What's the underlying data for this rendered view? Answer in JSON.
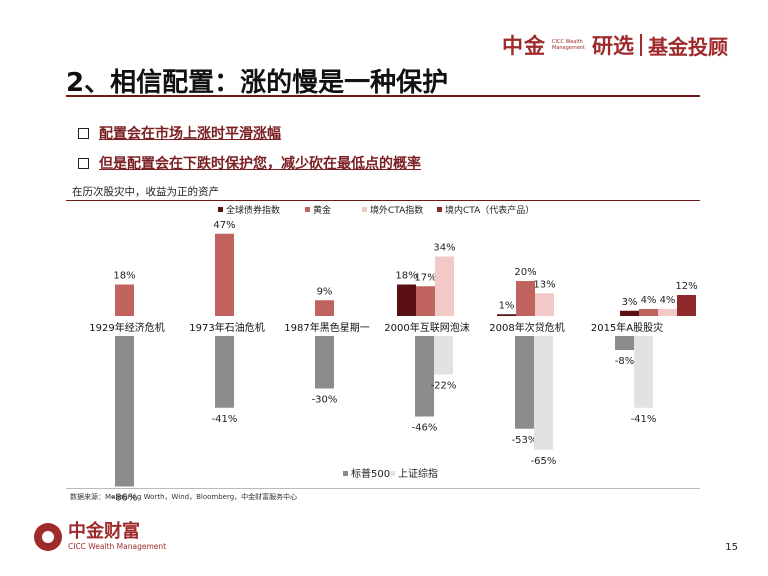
{
  "header": {
    "brand_main": "中金",
    "brand_small": "CICC Wealth Management",
    "brand_mid": "研选",
    "brand_right": "基金投顾"
  },
  "title": "2、相信配置：涨的慢是一种保护",
  "bullets": [
    "配置会在市场上涨时平滑涨幅",
    "但是配置会在下跌时保护您，减少砍在最低点的概率"
  ],
  "subheading": "在历次股灾中，收益为正的资产",
  "source": "数据来源：Measuring Worth，Wind，Bloomberg，中金财富服务中心",
  "footer": {
    "logo_cn": "中金财富",
    "logo_en": "CICC Wealth Management",
    "page": "15"
  },
  "colors": {
    "global_bond": "#5a0f12",
    "gold": "#c0625e",
    "overseas_cta": "#f2c9c7",
    "domestic_cta": "#8e2a2c",
    "sp500": "#8c8c8c",
    "shanghai": "#e2e2e2"
  },
  "chart_data": {
    "type": "bar",
    "categories": [
      "1929年经济危机",
      "1973年石油危机",
      "1987年黑色星期一",
      "2000年互联网泡沫",
      "2008年次贷危机",
      "2015年A股股灾"
    ],
    "top_legend": [
      "全球债券指数",
      "黄金",
      "境外CTA指数",
      "境内CTA（代表产品）"
    ],
    "bottom_legend": [
      "标普500",
      "上证综指"
    ],
    "series": [
      {
        "name": "全球债券指数",
        "key": "global_bond",
        "values": [
          null,
          null,
          null,
          18,
          1,
          3
        ]
      },
      {
        "name": "黄金",
        "key": "gold",
        "values": [
          18,
          47,
          9,
          17,
          20,
          4
        ]
      },
      {
        "name": "境外CTA指数",
        "key": "overseas_cta",
        "values": [
          null,
          null,
          null,
          34,
          13,
          4
        ]
      },
      {
        "name": "境内CTA（代表产品）",
        "key": "domestic_cta",
        "values": [
          null,
          null,
          null,
          null,
          null,
          12
        ]
      },
      {
        "name": "标普500",
        "key": "sp500",
        "values": [
          -86,
          -41,
          -30,
          -46,
          -53,
          -8
        ]
      },
      {
        "name": "上证综指",
        "key": "shanghai",
        "values": [
          null,
          null,
          null,
          -22,
          -65,
          -41
        ]
      }
    ],
    "unit": "%"
  }
}
